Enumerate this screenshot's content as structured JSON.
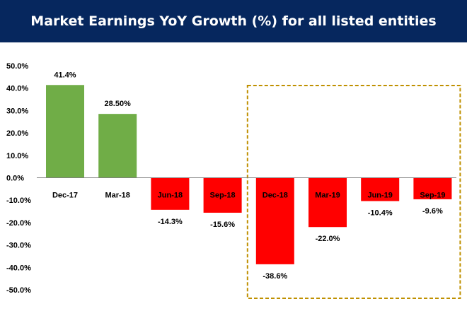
{
  "header": {
    "title": "Market Earnings YoY Growth (%) for all listed entities",
    "background": "#06275e"
  },
  "chart_data": {
    "type": "bar",
    "title": "Market Earnings YoY Growth (%) for all listed entities",
    "categories": [
      "Dec-17",
      "Mar-18",
      "Jun-18",
      "Sep-18",
      "Dec-18",
      "Mar-19",
      "Jun-19",
      "Sep-19"
    ],
    "values": [
      41.4,
      28.5,
      -14.3,
      -15.6,
      -38.6,
      -22.0,
      -10.4,
      -9.6
    ],
    "data_labels": [
      "41.4%",
      "28.50%",
      "-14.3%",
      "-15.6%",
      "-38.6%",
      "-22.0%",
      "-10.4%",
      "-9.6%"
    ],
    "y_ticks": [
      "50.0%",
      "40.0%",
      "30.0%",
      "20.0%",
      "10.0%",
      "0.0%",
      "-10.0%",
      "-20.0%",
      "-30.0%",
      "-40.0%",
      "-50.0%"
    ],
    "ylim": [
      -50,
      50
    ],
    "xlabel": "",
    "ylabel": "",
    "grid": false,
    "colors": {
      "positive": "#70ad47",
      "negative": "#ff0000",
      "highlight_box": "#bf9000"
    },
    "highlighted_categories": [
      "Dec-18",
      "Mar-19",
      "Jun-19",
      "Sep-19"
    ]
  }
}
